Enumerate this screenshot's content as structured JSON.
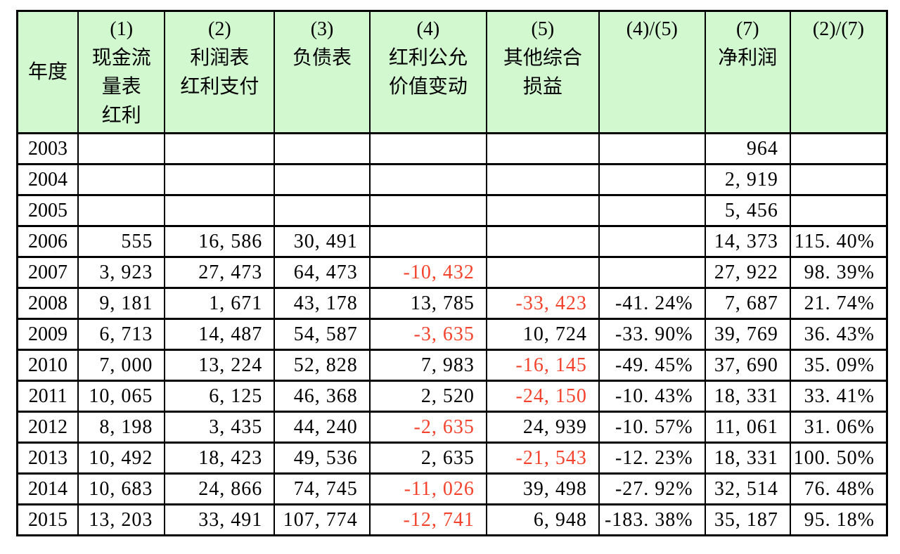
{
  "table": {
    "header": {
      "year_label": "年度",
      "cols": [
        {
          "num": "(1)",
          "label": "现金流\n量表\n红利"
        },
        {
          "num": "(2)",
          "label": "利润表\n红利支付"
        },
        {
          "num": "(3)",
          "label": "负债表"
        },
        {
          "num": "(4)",
          "label": "红利公允\n价值变动"
        },
        {
          "num": "(5)",
          "label": "其他综合\n损益"
        },
        {
          "num": "(4)/(5)",
          "label": ""
        },
        {
          "num": "(7)",
          "label": "净利润"
        },
        {
          "num": "(2)/(7)",
          "label": ""
        }
      ]
    },
    "rows": [
      {
        "year": "2003",
        "c1": "",
        "c2": "",
        "c3": "",
        "c4": "",
        "c5": "",
        "r45": "",
        "c7": "964",
        "r27": ""
      },
      {
        "year": "2004",
        "c1": "",
        "c2": "",
        "c3": "",
        "c4": "",
        "c5": "",
        "r45": "",
        "c7": "2, 919",
        "r27": ""
      },
      {
        "year": "2005",
        "c1": "",
        "c2": "",
        "c3": "",
        "c4": "",
        "c5": "",
        "r45": "",
        "c7": "5, 456",
        "r27": ""
      },
      {
        "year": "2006",
        "c1": "555",
        "c2": "16, 586",
        "c3": "30, 491",
        "c4": "",
        "c5": "",
        "r45": "",
        "c7": "14, 373",
        "r27": "115. 40%"
      },
      {
        "year": "2007",
        "c1": "3, 923",
        "c2": "27, 473",
        "c3": "64, 473",
        "c4": "-10, 432",
        "c5": "",
        "r45": "",
        "c7": "27, 922",
        "r27": "98. 39%"
      },
      {
        "year": "2008",
        "c1": "9, 181",
        "c2": "1, 671",
        "c3": "43, 178",
        "c4": "13, 785",
        "c5": "-33, 423",
        "r45": "-41. 24%",
        "c7": "7, 687",
        "r27": "21. 74%"
      },
      {
        "year": "2009",
        "c1": "6, 713",
        "c2": "14, 487",
        "c3": "54, 587",
        "c4": "-3, 635",
        "c5": "10, 724",
        "r45": "-33. 90%",
        "c7": "39, 769",
        "r27": "36. 43%"
      },
      {
        "year": "2010",
        "c1": "7, 000",
        "c2": "13, 224",
        "c3": "52, 828",
        "c4": "7, 983",
        "c5": "-16, 145",
        "r45": "-49. 45%",
        "c7": "37, 690",
        "r27": "35. 09%"
      },
      {
        "year": "2011",
        "c1": "10, 065",
        "c2": "6, 125",
        "c3": "46, 368",
        "c4": "2, 520",
        "c5": "-24, 150",
        "r45": "-10. 43%",
        "c7": "18, 331",
        "r27": "33. 41%"
      },
      {
        "year": "2012",
        "c1": "8, 198",
        "c2": "3, 435",
        "c3": "44, 240",
        "c4": "-2, 635",
        "c5": "24, 939",
        "r45": "-10. 57%",
        "c7": "11, 061",
        "r27": "31. 06%"
      },
      {
        "year": "2013",
        "c1": "10, 492",
        "c2": "18, 423",
        "c3": "49, 536",
        "c4": "2, 635",
        "c5": "-21, 543",
        "r45": "-12. 23%",
        "c7": "18, 331",
        "r27": "100. 50%"
      },
      {
        "year": "2014",
        "c1": "10, 683",
        "c2": "24, 866",
        "c3": "74, 745",
        "c4": "-11, 026",
        "c5": "39, 498",
        "r45": "-27. 92%",
        "c7": "32, 514",
        "r27": "76. 48%"
      },
      {
        "year": "2015",
        "c1": "13, 203",
        "c2": "33, 491",
        "c3": "107, 774",
        "c4": "-12, 741",
        "c5": "6, 948",
        "r45": "-183. 38%",
        "c7": "35, 187",
        "r27": "95. 18%"
      }
    ],
    "colors": {
      "header_bg": "#d2f8d0",
      "negative_text": "#f4422c",
      "border": "#000000"
    }
  }
}
